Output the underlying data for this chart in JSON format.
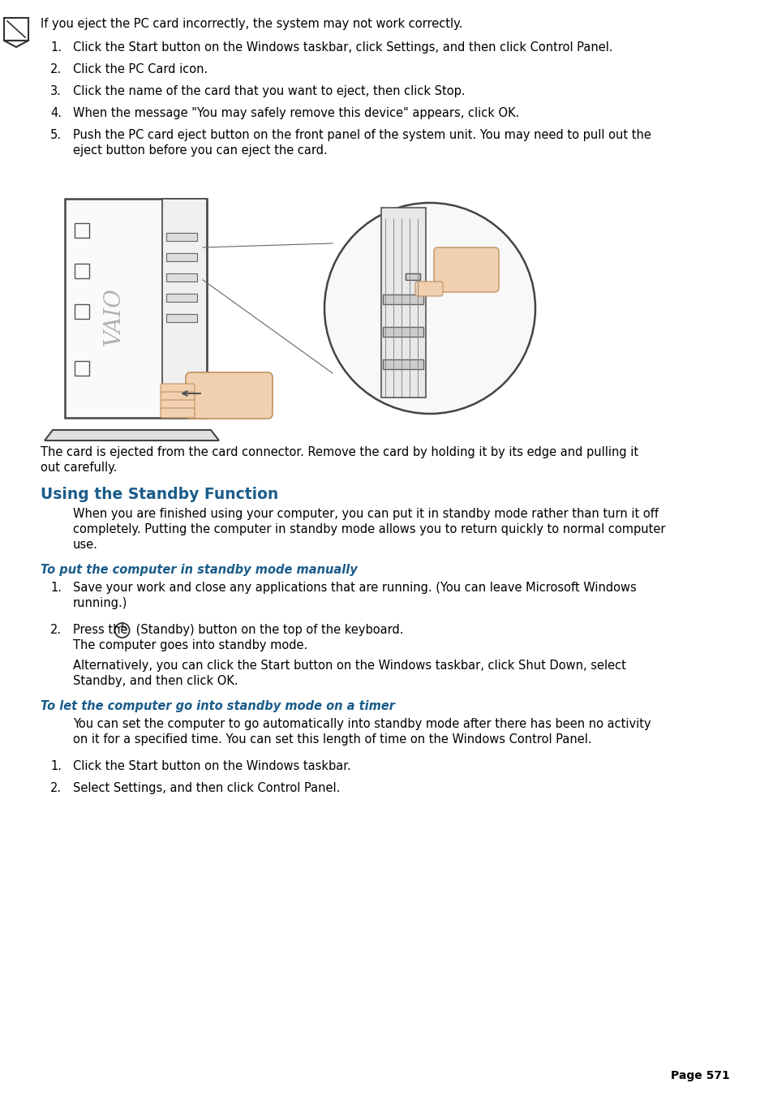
{
  "bg_color": "#ffffff",
  "text_color": "#000000",
  "heading_color": "#1a5c8a",
  "subheading_color": "#1a5c8a",
  "font_size_body": 10.5,
  "font_size_heading": 13.5,
  "font_size_subheading": 10.5,
  "page_number": "Page 571",
  "note_text": "If you eject the PC card incorrectly, the system may not work correctly.",
  "numbered_items_top": [
    "Click the Start button on the Windows taskbar, click Settings, and then click Control Panel.",
    "Click the PC Card icon.",
    "Click the name of the card that you want to eject, then click Stop.",
    "When the message \"You may safely remove this device\" appears, click OK.",
    "Push the PC card eject button on the front panel of the system unit. You may need to pull out the\neject button before you can eject the card."
  ],
  "after_image_text": "The card is ejected from the card connector. Remove the card by holding it by its edge and pulling it\nout carefully.",
  "section_heading": "Using the Standby Function",
  "section_intro_lines": [
    "When you are finished using your computer, you can put it in standby mode rather than turn it off",
    "completely. Putting the computer in standby mode allows you to return quickly to normal computer",
    "use."
  ],
  "subheading1": "To put the computer in standby mode manually",
  "manual_item1_lines": [
    "Save your work and close any applications that are running. (You can leave Microsoft Windows",
    "running.)"
  ],
  "manual_item2_line1": "Press the",
  "manual_item2_line1_suffix": " (Standby) button on the top of the keyboard.",
  "manual_item2_extra": [
    "The computer goes into standby mode.",
    "",
    "Alternatively, you can click the Start button on the Windows taskbar, click Shut Down, select",
    "Standby, and then click OK."
  ],
  "subheading2": "To let the computer go into standby mode on a timer",
  "timer_intro_lines": [
    "You can set the computer to go automatically into standby mode after there has been no activity",
    "on it for a specified time. You can set this length of time on the Windows Control Panel."
  ],
  "timer_items": [
    "Click the Start button on the Windows taskbar.",
    "Select Settings, and then click Control Panel."
  ]
}
